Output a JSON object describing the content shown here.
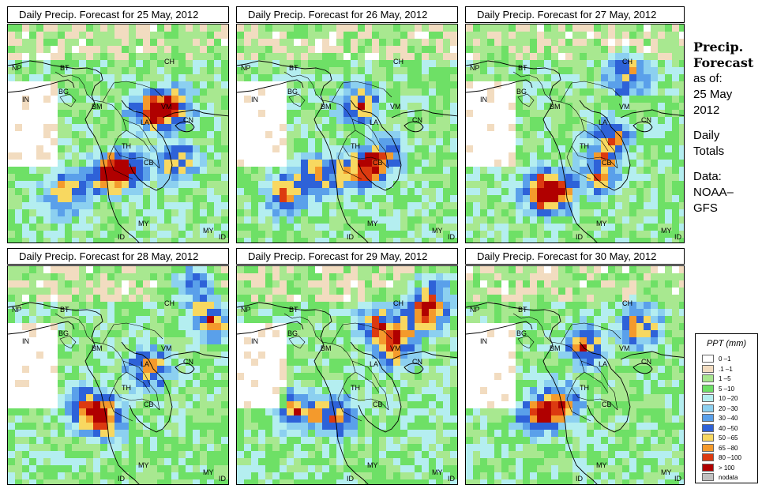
{
  "panels": [
    {
      "title": "Daily Precip. Forecast for  25 May, 2012",
      "variant": 0
    },
    {
      "title": "Daily Precip. Forecast for  26 May, 2012",
      "variant": 1
    },
    {
      "title": "Daily Precip. Forecast for  27 May, 2012",
      "variant": 2
    },
    {
      "title": "Daily Precip. Forecast for  28 May, 2012",
      "variant": 3
    },
    {
      "title": "Daily Precip. Forecast for  29 May, 2012",
      "variant": 4
    },
    {
      "title": "Daily Precip. Forecast for  30 May, 2012",
      "variant": 5
    }
  ],
  "map_labels": [
    "NP",
    "BT",
    "CH",
    "BG",
    "IN",
    "BM",
    "VM",
    "LA",
    "TH",
    "CB",
    "MY",
    "MY",
    "ID",
    "ID",
    "CN"
  ],
  "sidebar": {
    "heading1": "Precip.",
    "heading2": "Forecast",
    "asof": "as of:",
    "date1": "25 May",
    "date2": "2012",
    "totals1": "Daily",
    "totals2": "Totals",
    "data_label": "Data:",
    "source1": "NOAA–",
    "source2": "GFS"
  },
  "legend": {
    "title": "PPT (mm)",
    "items": [
      {
        "label": "0 –1",
        "color": "#ffffff"
      },
      {
        "label": ".1 –1",
        "color": "#f2dcc0"
      },
      {
        "label": "1 –5",
        "color": "#a8e890"
      },
      {
        "label": "5 –10",
        "color": "#6ee066"
      },
      {
        "label": "10 –20",
        "color": "#b4eef0"
      },
      {
        "label": "20 –30",
        "color": "#8cd0f0"
      },
      {
        "label": "30 –40",
        "color": "#5aa0ea"
      },
      {
        "label": "40 –50",
        "color": "#2e62d8"
      },
      {
        "label": "50 –65",
        "color": "#f8d860"
      },
      {
        "label": "65 –80",
        "color": "#f49a2c"
      },
      {
        "label": "80 –100",
        "color": "#dc3a10"
      },
      {
        "label": "> 100",
        "color": "#b00000"
      },
      {
        "label": "nodata",
        "color": "#c0c0c0"
      }
    ]
  }
}
